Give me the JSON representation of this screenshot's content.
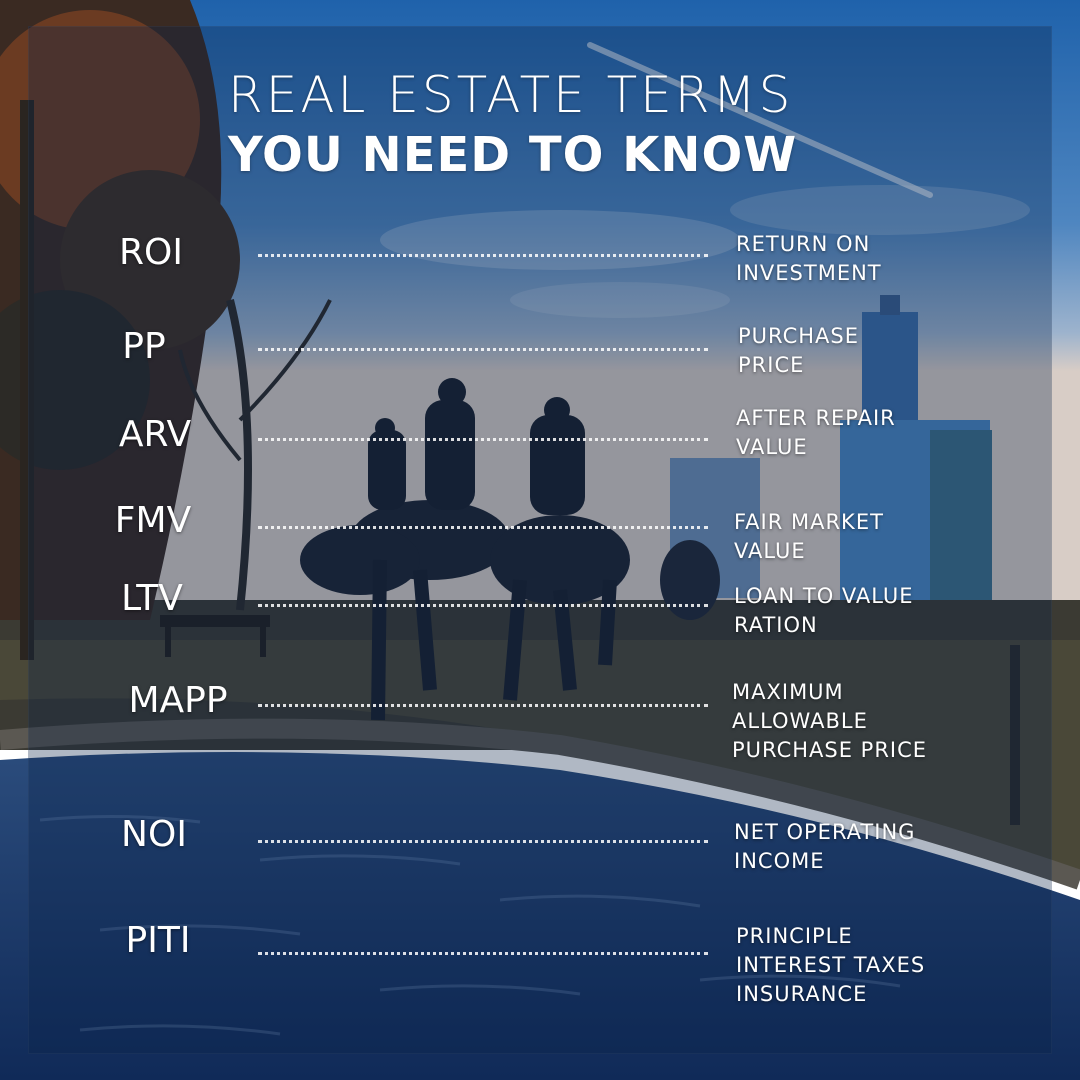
{
  "title": {
    "line1": "REAL ESTATE TERMS",
    "line2": "YOU NEED TO KNOW"
  },
  "terms": [
    {
      "abbr": "ROI",
      "def": [
        "RETURN ON",
        "INVESTMENT"
      ]
    },
    {
      "abbr": "PP",
      "def": [
        "PURCHASE",
        "PRICE"
      ]
    },
    {
      "abbr": "ARV",
      "def": [
        "AFTER REPAIR",
        "VALUE"
      ]
    },
    {
      "abbr": "FMV",
      "def": [
        "FAIR MARKET",
        "VALUE"
      ]
    },
    {
      "abbr": "LTV",
      "def": [
        "LOAN TO VALUE",
        "RATION"
      ]
    },
    {
      "abbr": "MAPP",
      "def": [
        "MAXIMUM",
        "ALLOWABLE",
        "PURCHASE PRICE"
      ]
    },
    {
      "abbr": "NOI",
      "def": [
        "NET OPERATING",
        "INCOME"
      ]
    },
    {
      "abbr": "PITI",
      "def": [
        "PRINCIPLE",
        "INTEREST TAXES",
        "INSURANCE"
      ]
    }
  ],
  "colors": {
    "sky_top": "#2a6fb8",
    "sky_mid": "#5a8fc4",
    "horizon": "#c9c3c0",
    "ground": "#3a3a33",
    "water": "#1c3f73",
    "panel_tint": "#082248"
  }
}
